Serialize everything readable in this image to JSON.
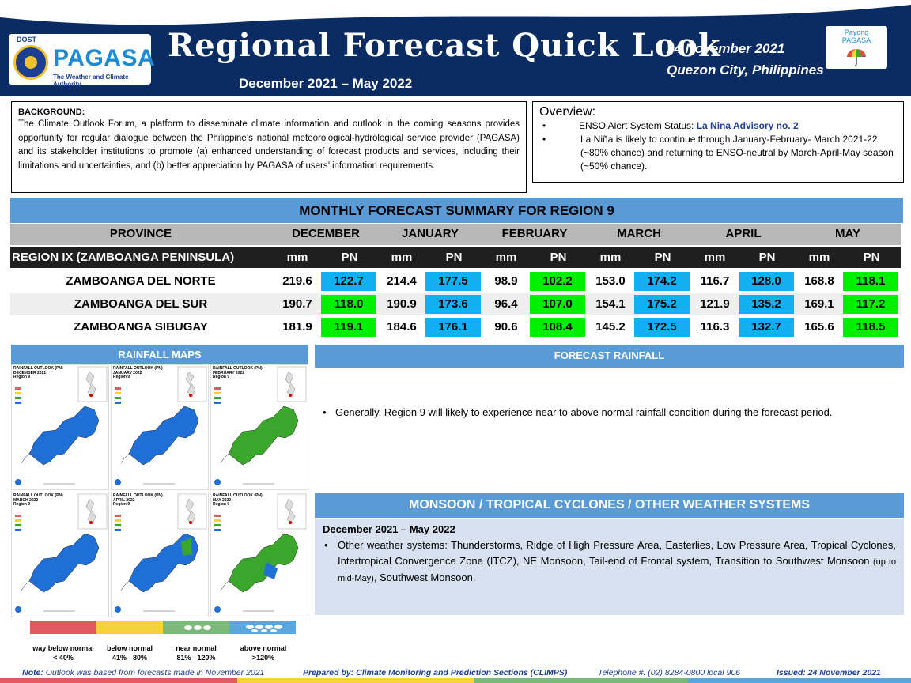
{
  "header": {
    "dost": "DOST",
    "agency": "PAGASA",
    "agency_tagline": "The Weather and Climate Authority",
    "title": "Regional Forecast Quick Look",
    "period": "December 2021 – May 2022",
    "date": "24 November  2021",
    "location": "Quezon  City, Philippines",
    "payong_label": "Payong\nPAGASA"
  },
  "background": {
    "heading": "BACKGROUND:",
    "text": "The Climate Outlook Forum, a platform to disseminate climate information and outlook in the coming seasons provides opportunity for regular dialogue between the Philippine’s national meteorological-hydrological service provider (PAGASA) and its stakeholder institutions to promote (a) enhanced understanding of forecast products and services, including their limitations and uncertainties, and (b) better appreciation by PAGASA of users’ information requirements."
  },
  "overview": {
    "heading": "Overview:",
    "item1_prefix": "ENSO Alert System Status: ",
    "item1_link": "La Nina Advisory no. 2",
    "item2": "La Niña is likely to continue through January-February- March 2021-22  (~80% chance) and returning to ENSO-neutral by March-April-May season (~50% chance)."
  },
  "monthly": {
    "title": "MONTHLY FORECAST SUMMARY FOR REGION 9",
    "province_header": "PROVINCE",
    "months": [
      "DECEMBER",
      "JANUARY",
      "FEBRUARY",
      "MARCH",
      "APRIL",
      "MAY"
    ],
    "region_label": "REGION IX (ZAMBOANGA PENINSULA)",
    "mm_label": "mm",
    "pn_label": "PN",
    "rows": [
      {
        "province": "ZAMBOANGA DEL NORTE",
        "mm": [
          "219.6",
          "214.4",
          "98.9",
          "153.0",
          "116.7",
          "168.8"
        ],
        "pn": [
          "122.7",
          "177.5",
          "102.2",
          "174.2",
          "128.0",
          "118.1"
        ],
        "pn_class": [
          "blue",
          "blue",
          "green",
          "blue",
          "blue",
          "green"
        ]
      },
      {
        "province": "ZAMBOANGA DEL SUR",
        "mm": [
          "190.7",
          "190.9",
          "96.4",
          "154.1",
          "121.9",
          "169.1"
        ],
        "pn": [
          "118.0",
          "173.6",
          "107.0",
          "175.2",
          "135.2",
          "117.2"
        ],
        "pn_class": [
          "green",
          "blue",
          "green",
          "blue",
          "blue",
          "green"
        ]
      },
      {
        "province": "ZAMBOANGA SIBUGAY",
        "mm": [
          "181.9",
          "184.6",
          "90.6",
          "145.2",
          "116.3",
          "165.6"
        ],
        "pn": [
          "119.1",
          "176.1",
          "108.4",
          "172.5",
          "132.7",
          "118.5"
        ],
        "pn_class": [
          "green",
          "blue",
          "green",
          "blue",
          "blue",
          "green"
        ]
      }
    ]
  },
  "rainfall_maps": {
    "heading": "RAINFALL MAPS",
    "maps": [
      {
        "title": "RAINFALL OUTLOOK (PN)\nDECEMBER 2021\nRegion 9",
        "fill": "#1f6fd6"
      },
      {
        "title": "RAINFALL OUTLOOK (PN)\nJANUARY 2022\nRegion 9",
        "fill": "#1f6fd6"
      },
      {
        "title": "RAINFALL OUTLOOK (PN)\nFEBRUARY 2022\nRegion 9",
        "fill": "#3aa62b"
      },
      {
        "title": "RAINFALL OUTLOOK (PN)\nMARCH 2022\nRegion 9",
        "fill": "#1f6fd6"
      },
      {
        "title": "RAINFALL OUTLOOK (PN)\nAPRIL 2022\nRegion 9",
        "fill": "#1f6fd6"
      },
      {
        "title": "RAINFALL OUTLOOK (PN)\nMAY 2022\nRegion 9",
        "fill": "#3aa62b"
      }
    ],
    "legend": [
      {
        "label": "way below normal",
        "range": "< 40%",
        "color": "#e05b5f"
      },
      {
        "label": "below normal",
        "range": "41% -  80%",
        "color": "#f5d23b"
      },
      {
        "label": "near normal",
        "range": "81% - 120%",
        "color": "#7cb87a"
      },
      {
        "label": "above normal",
        "range": ">120%",
        "color": "#5aa7e0"
      }
    ]
  },
  "forecast_rainfall": {
    "heading": "FORECAST RAINFALL",
    "text": "Generally, Region 9 will likely to experience near to above normal rainfall condition during the forecast period."
  },
  "monsoon": {
    "heading": "MONSOON / TROPICAL CYCLONES / OTHER WEATHER SYSTEMS",
    "period": "December 2021 – May 2022",
    "text_main": "Other weather systems: Thunderstorms,  Ridge of High Pressure Area,  Easterlies, Low Pressure Area, Tropical Cyclones, Intertropical Convergence Zone (ITCZ), NE Monsoon, Tail-end of Frontal system, Transition to Southwest Monsoon ",
    "text_small": "(up to mid-May)",
    "text_end": ", Southwest Monsoon."
  },
  "footer": {
    "note_label": "Note:",
    "note_text": " Outlook was based from forecasts made in November 2021",
    "prepared": "Prepared by: Climate Monitoring and Prediction Sections (CLIMPS)",
    "telephone": "Telephone #: (02) 8284-0800 local 906",
    "issued": "Issued: 24 November 2021"
  },
  "colors": {
    "header_bg": "#0b2c63",
    "section_blue": "#5a9bd5",
    "pn_blue": "#11b0f0",
    "pn_green": "#00ee00"
  }
}
